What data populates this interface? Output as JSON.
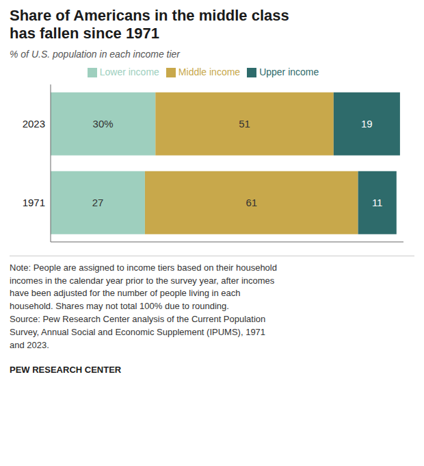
{
  "chart_data": {
    "type": "bar",
    "orientation": "horizontal",
    "stacked": true,
    "title": "Share of Americans in the middle class\nhas fallen since 1971",
    "subtitle": "% of U.S. population in each income tier",
    "categories": [
      "2023",
      "1971"
    ],
    "series": [
      {
        "name": "Lower income",
        "color": "#9ecfbe",
        "values": [
          30,
          27
        ],
        "value_labels": [
          "30%",
          "27"
        ]
      },
      {
        "name": "Middle income",
        "color": "#c8a84b",
        "values": [
          51,
          61
        ],
        "value_labels": [
          "51",
          "61"
        ]
      },
      {
        "name": "Upper income",
        "color": "#2e6b6b",
        "values": [
          19,
          11
        ],
        "value_labels": [
          "19",
          "11"
        ]
      }
    ],
    "xlim": [
      0,
      101
    ],
    "tick_labels": "y",
    "data_labels": true,
    "legend": "top",
    "annotations": [
      "Note: People are assigned to income tiers based on their household",
      "incomes in the calendar year prior to the survey year, after incomes",
      "have been adjusted for the number of people living in each",
      "household. Shares may not total 100% due to rounding.",
      "Source: Pew Research Center analysis of the Current Population",
      "Survey, Annual Social and Economic Supplement (IPUMS), 1971",
      "and 2023."
    ],
    "footer": "PEW RESEARCH CENTER"
  }
}
